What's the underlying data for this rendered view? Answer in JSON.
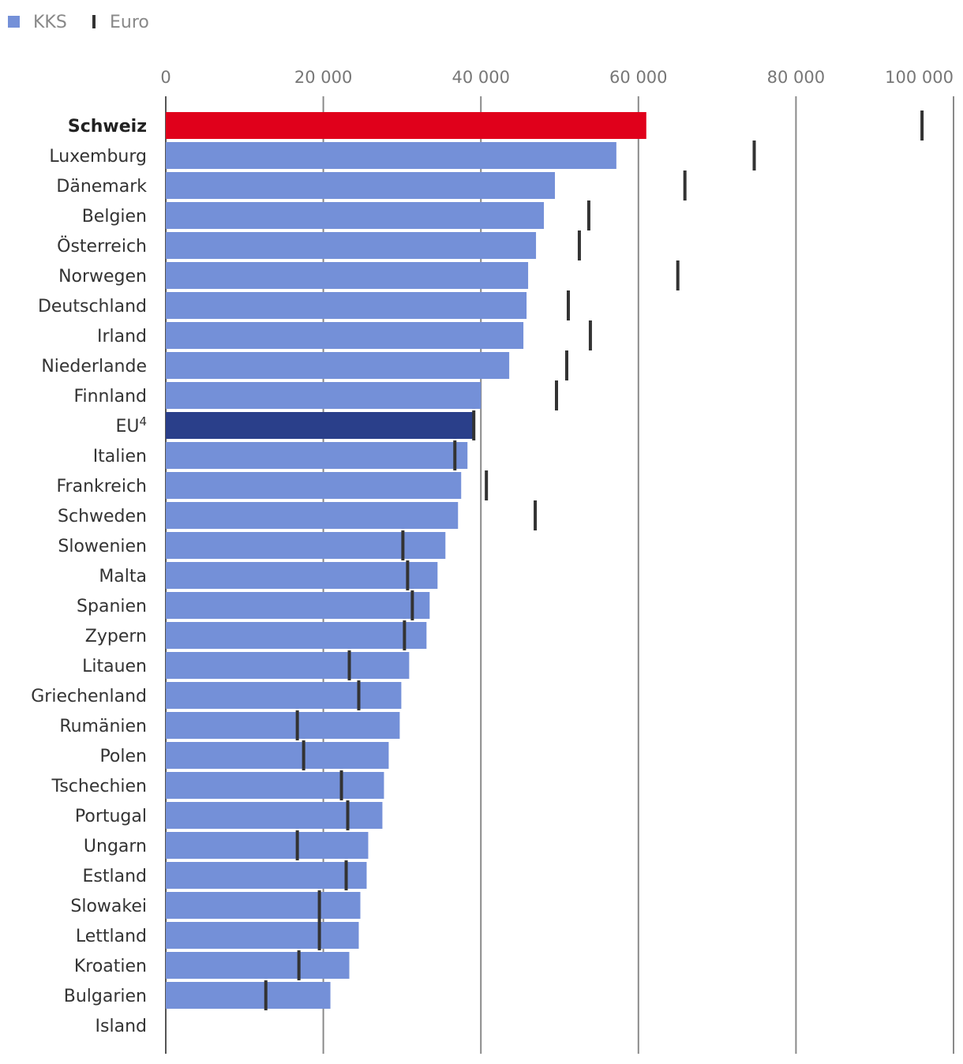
{
  "chart_data": {
    "type": "bar",
    "orientation": "horizontal",
    "legend": [
      {
        "name": "KKS",
        "symbol": "square",
        "color": "#7490d8"
      },
      {
        "name": "Euro",
        "symbol": "tick",
        "color": "#333333"
      }
    ],
    "legend_position": "top-left",
    "x_ticks": [
      "0",
      "20 000",
      "40 000",
      "60 000",
      "80 000",
      "100 000"
    ],
    "xlim": [
      0,
      100000
    ],
    "grid": true,
    "colors": {
      "default": "#7490d8",
      "highlight": "#e0001b",
      "eu": "#2a3f8a",
      "marker": "#333333"
    },
    "categories": [
      {
        "label": "Schweiz",
        "bold": true,
        "color_key": "highlight",
        "kks": 61000,
        "euro": 96000
      },
      {
        "label": "Luxemburg",
        "kks": 57200,
        "euro": 74700
      },
      {
        "label": "Dänemark",
        "kks": 49400,
        "euro": 65900
      },
      {
        "label": "Belgien",
        "kks": 48000,
        "euro": 53700
      },
      {
        "label": "Österreich",
        "kks": 47000,
        "euro": 52500
      },
      {
        "label": "Norwegen",
        "kks": 46000,
        "euro": 65000
      },
      {
        "label": "Deutschland",
        "kks": 45800,
        "euro": 51100
      },
      {
        "label": "Irland",
        "kks": 45400,
        "euro": 53900
      },
      {
        "label": "Niederlande",
        "kks": 43600,
        "euro": 50900
      },
      {
        "label": "Finnland",
        "kks": 40000,
        "euro": 49600
      },
      {
        "label": "EU",
        "sup": "4",
        "color_key": "eu",
        "kks": 39100,
        "euro": 39100
      },
      {
        "label": "Italien",
        "kks": 38300,
        "euro": 36700
      },
      {
        "label": "Frankreich",
        "kks": 37500,
        "euro": 40700
      },
      {
        "label": "Schweden",
        "kks": 37100,
        "euro": 46900
      },
      {
        "label": "Slowenien",
        "kks": 35500,
        "euro": 30100
      },
      {
        "label": "Malta",
        "kks": 34500,
        "euro": 30700
      },
      {
        "label": "Spanien",
        "kks": 33500,
        "euro": 31300
      },
      {
        "label": "Zypern",
        "kks": 33100,
        "euro": 30300
      },
      {
        "label": "Litauen",
        "kks": 30900,
        "euro": 23300
      },
      {
        "label": "Griechenland",
        "kks": 29900,
        "euro": 24500
      },
      {
        "label": "Rumänien",
        "kks": 29700,
        "euro": 16700
      },
      {
        "label": "Polen",
        "kks": 28300,
        "euro": 17500
      },
      {
        "label": "Tschechien",
        "kks": 27700,
        "euro": 22300
      },
      {
        "label": "Portugal",
        "kks": 27500,
        "euro": 23100
      },
      {
        "label": "Ungarn",
        "kks": 25700,
        "euro": 16700
      },
      {
        "label": "Estland",
        "kks": 25500,
        "euro": 22900
      },
      {
        "label": "Slowakei",
        "kks": 24700,
        "euro": 19500
      },
      {
        "label": "Lettland",
        "kks": 24500,
        "euro": 19500
      },
      {
        "label": "Kroatien",
        "kks": 23300,
        "euro": 16900
      },
      {
        "label": "Bulgarien",
        "kks": 20900,
        "euro": 12700
      },
      {
        "label": "Island",
        "kks": null,
        "euro": null
      }
    ]
  }
}
